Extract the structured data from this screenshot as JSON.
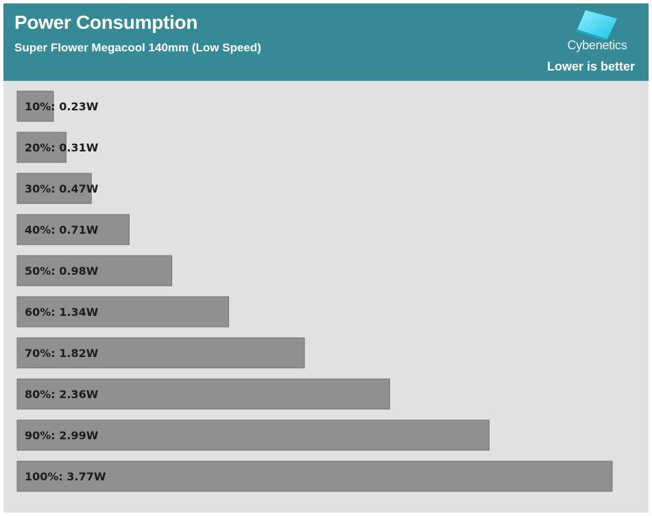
{
  "header": {
    "title": "Power Consumption",
    "subtitle": "Super Flower Megacool 140mm (Low Speed)",
    "note": "Lower is better",
    "logo": {
      "text": "Cybenetics",
      "icon": "cybenetics-logo-icon",
      "color": "#4fd6ee"
    },
    "background_color": "#368a98"
  },
  "chart_data": {
    "type": "bar",
    "orientation": "horizontal",
    "categories": [
      "10%",
      "20%",
      "30%",
      "40%",
      "50%",
      "60%",
      "70%",
      "80%",
      "90%",
      "100%"
    ],
    "values": [
      0.23,
      0.31,
      0.47,
      0.71,
      0.98,
      1.34,
      1.82,
      2.36,
      2.99,
      3.77
    ],
    "unit": "W",
    "data_labels": [
      "10%: 0.23W",
      "20%: 0.31W",
      "30%: 0.47W",
      "40%: 0.71W",
      "50%: 0.98W",
      "60%: 1.34W",
      "70%: 1.82W",
      "80%: 2.36W",
      "90%: 2.99W",
      "100%: 3.77W"
    ],
    "title": "Power Consumption",
    "subtitle": "Super Flower Megacool 140mm (Low Speed)",
    "xlabel": "",
    "ylabel": "",
    "xlim": [
      0,
      3.77
    ],
    "grid": false,
    "legend": "none",
    "bar_color": "#909090",
    "background_color": "#e1e1e1"
  }
}
